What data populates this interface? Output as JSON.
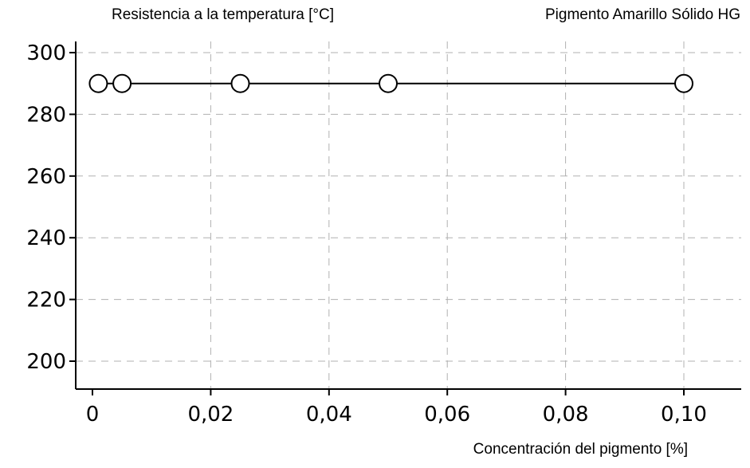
{
  "chart_data": {
    "type": "line",
    "title_left": "Resistencia a la temperatura [°C]",
    "title_right": "Pigmento Amarillo Sólido HG",
    "xlabel": "Concentración del pigmento [%]",
    "ylabel": "",
    "xlim": [
      0,
      0.105
    ],
    "ylim": [
      190,
      302
    ],
    "x_ticks": [
      {
        "value": 0,
        "label": "0"
      },
      {
        "value": 0.02,
        "label": "0,02"
      },
      {
        "value": 0.04,
        "label": "0,04"
      },
      {
        "value": 0.06,
        "label": "0,06"
      },
      {
        "value": 0.08,
        "label": "0,08"
      },
      {
        "value": 0.1,
        "label": "0,10"
      }
    ],
    "y_ticks": [
      {
        "value": 200,
        "label": "200"
      },
      {
        "value": 220,
        "label": "220"
      },
      {
        "value": 240,
        "label": "240"
      },
      {
        "value": 260,
        "label": "260"
      },
      {
        "value": 280,
        "label": "280"
      },
      {
        "value": 300,
        "label": "300"
      }
    ],
    "grid": true,
    "marker": "open-circle",
    "series": [
      {
        "x": [
          0.001,
          0.005,
          0.025,
          0.05,
          0.1
        ],
        "y": [
          290,
          290,
          290,
          290,
          290
        ]
      }
    ]
  }
}
